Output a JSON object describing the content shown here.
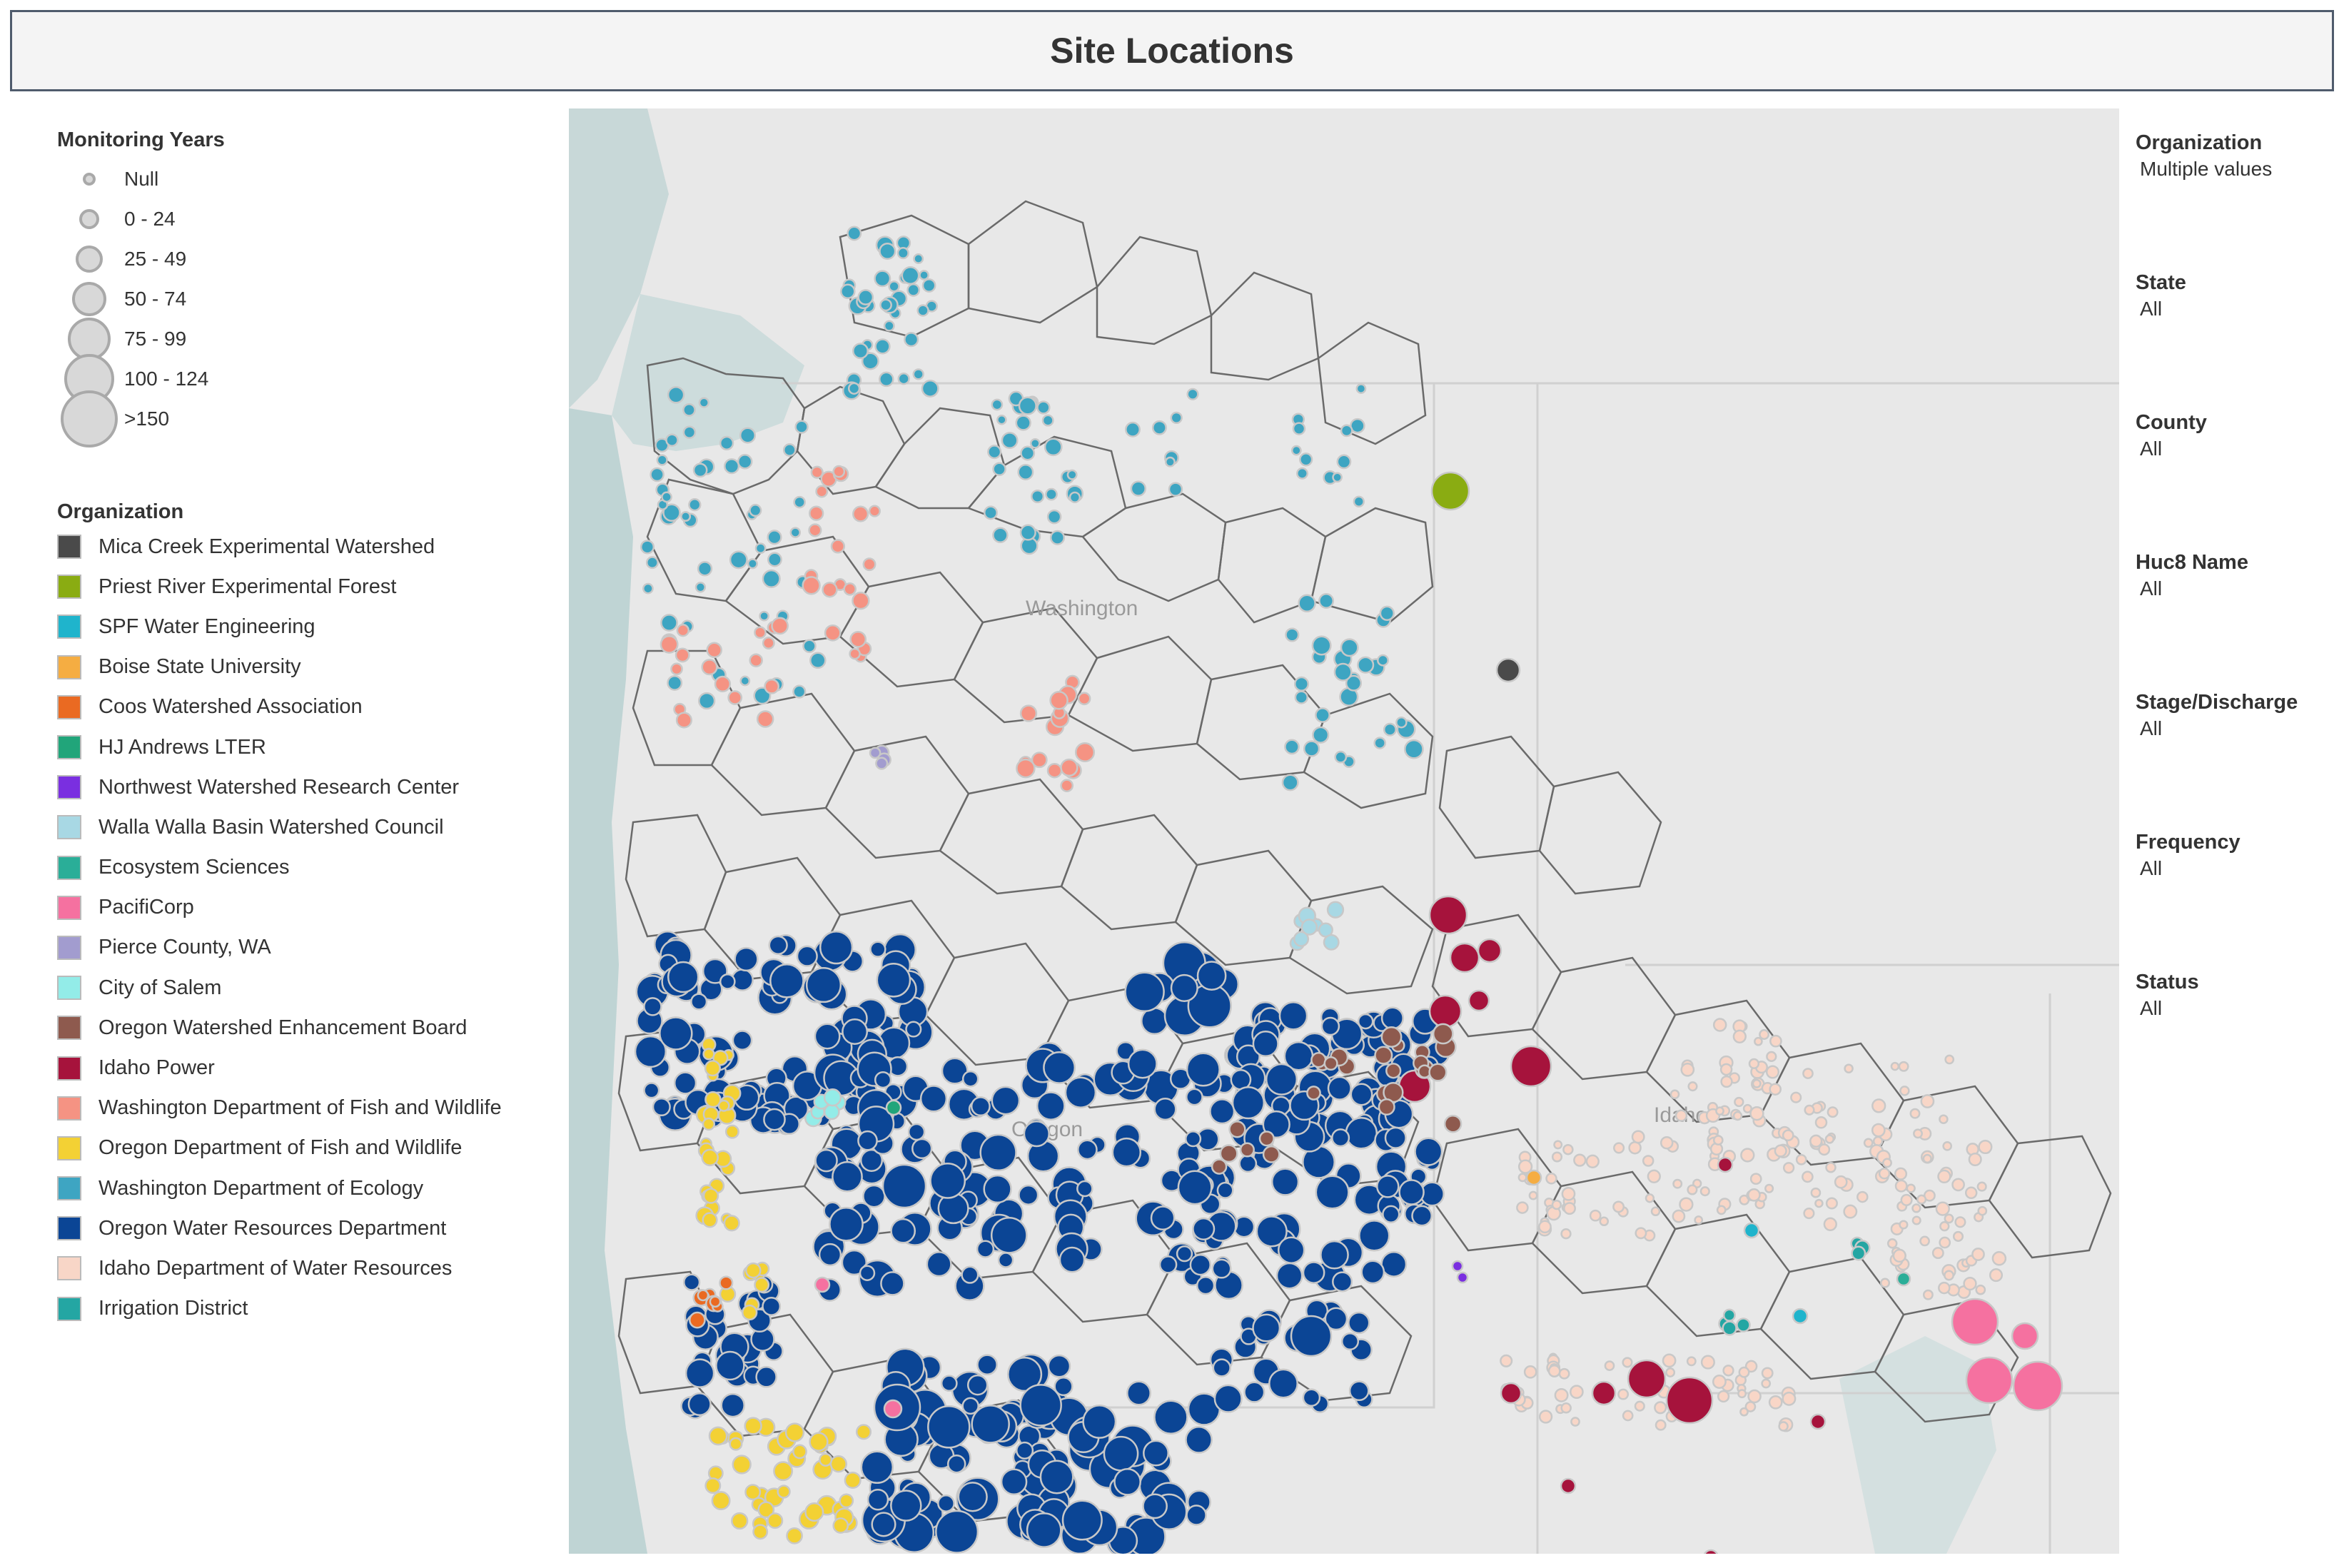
{
  "title": "Site Locations",
  "legends": {
    "size_title": "Monitoring Years",
    "size_items": [
      "Null",
      "0 - 24",
      "25 - 49",
      "50 - 74",
      "75 - 99",
      "100 - 124",
      ">150"
    ],
    "org_title": "Organization",
    "organizations": [
      {
        "label": "Mica Creek Experimental Watershed",
        "color": "#4a4a4a"
      },
      {
        "label": "Priest River Experimental Forest",
        "color": "#8aac12"
      },
      {
        "label": "SPF Water Engineering",
        "color": "#1fb4cc"
      },
      {
        "label": "Boise State University",
        "color": "#f5ad42"
      },
      {
        "label": "Coos Watershed Association",
        "color": "#ea6a22"
      },
      {
        "label": "HJ Andrews LTER",
        "color": "#21a57a"
      },
      {
        "label": "Northwest Watershed Research Center",
        "color": "#7a2fe0"
      },
      {
        "label": "Walla Walla Basin Watershed Council",
        "color": "#a8d8e4"
      },
      {
        "label": "Ecosystem Sciences",
        "color": "#2aae98"
      },
      {
        "label": "PacifiCorp",
        "color": "#f571a0"
      },
      {
        "label": "Pierce County, WA",
        "color": "#a29ccf"
      },
      {
        "label": "City of Salem",
        "color": "#93ece8"
      },
      {
        "label": "Oregon Watershed Enhancement Board",
        "color": "#8e5a4e"
      },
      {
        "label": "Idaho Power",
        "color": "#a6133c"
      },
      {
        "label": "Washington Department of Fish and Wildlife",
        "color": "#f59383"
      },
      {
        "label": "Oregon Department of Fish and Wildlife",
        "color": "#f3d134"
      },
      {
        "label": "Washington Department of Ecology",
        "color": "#3ea5c2"
      },
      {
        "label": "Oregon Water Resources Department",
        "color": "#0b4595"
      },
      {
        "label": "Idaho Department of Water Resources",
        "color": "#f8d6c7"
      },
      {
        "label": "Irrigation District",
        "color": "#24a6a3"
      }
    ]
  },
  "filters": [
    {
      "label": "Organization",
      "value": "Multiple values"
    },
    {
      "label": "State",
      "value": "All"
    },
    {
      "label": "County",
      "value": "All"
    },
    {
      "label": "Huc8 Name",
      "value": "All"
    },
    {
      "label": "Stage/Discharge",
      "value": "All"
    },
    {
      "label": "Frequency",
      "value": "All"
    },
    {
      "label": "Status",
      "value": "All"
    }
  ],
  "map": {
    "labels": [
      "Washington",
      "Oregon",
      "Idaho"
    ]
  }
}
